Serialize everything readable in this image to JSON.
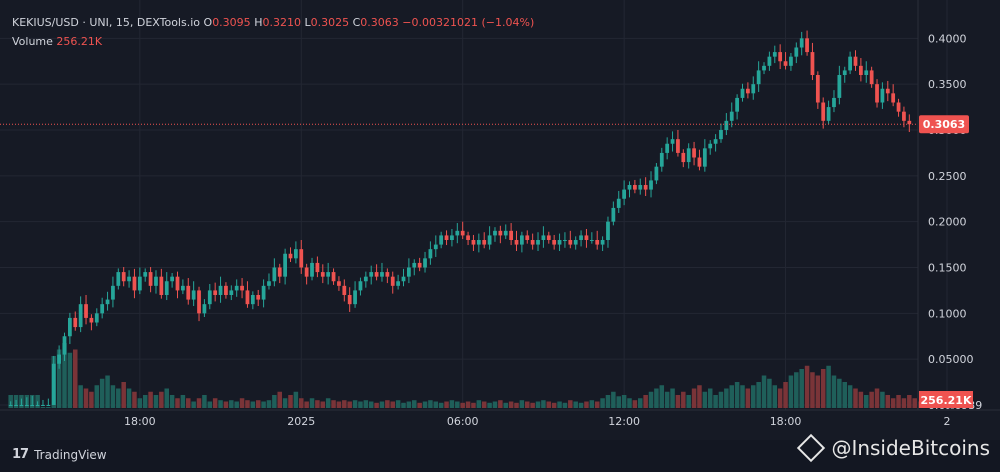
{
  "header": {
    "pair": "KEKIUS/USD · UNI, 15, DEXTools.io",
    "o_label": "O",
    "o_value": "0.3095",
    "h_label": "H",
    "h_value": "0.3210",
    "l_label": "L",
    "l_value": "0.3025",
    "c_label": "C",
    "c_value": "0.3063",
    "change": "−0.00321021 (−1.04%)",
    "volume_label": "Volume",
    "volume_value": "256.21K"
  },
  "footer": {
    "brand": "TradingView",
    "watermark": "@InsideBitcoins"
  },
  "colors": {
    "up": "#26a69a",
    "down": "#ef5350",
    "bg": "#161a25",
    "grid": "#232733",
    "text": "#d1d4dc"
  },
  "chart_data": {
    "type": "candlestick",
    "title": "KEKIUS/USD · UNI, 15, DEXTools.io",
    "ylim": [
      0,
      0.42
    ],
    "y_ticks": [
      "0.4000",
      "0.3500",
      "0.3000",
      "0.2500",
      "0.2000",
      "0.1500",
      "0.1000",
      "0.05000",
      "0.0₁₆6939"
    ],
    "y_tick_values": [
      0.4,
      0.35,
      0.3,
      0.25,
      0.2,
      0.15,
      0.1,
      0.05,
      0.0
    ],
    "x_ticks": [
      "18:00",
      "2025",
      "06:00",
      "12:00",
      "18:00",
      "2"
    ],
    "x_tick_index": [
      24,
      54,
      84,
      114,
      144,
      174
    ],
    "last_price": "0.3063",
    "last_price_value": 0.3063,
    "last_volume": "256.21K",
    "grid": true,
    "closes": [
      0.0,
      0.0,
      0.0,
      0.0,
      0.0,
      0.0,
      0.0,
      0.0,
      0.045,
      0.055,
      0.075,
      0.095,
      0.085,
      0.11,
      0.095,
      0.09,
      0.1,
      0.11,
      0.115,
      0.13,
      0.145,
      0.135,
      0.14,
      0.125,
      0.14,
      0.145,
      0.13,
      0.14,
      0.12,
      0.135,
      0.14,
      0.125,
      0.13,
      0.115,
      0.125,
      0.1,
      0.11,
      0.125,
      0.12,
      0.13,
      0.12,
      0.125,
      0.13,
      0.125,
      0.11,
      0.12,
      0.115,
      0.13,
      0.135,
      0.15,
      0.14,
      0.165,
      0.16,
      0.17,
      0.15,
      0.14,
      0.155,
      0.145,
      0.14,
      0.145,
      0.135,
      0.13,
      0.12,
      0.11,
      0.125,
      0.135,
      0.14,
      0.145,
      0.14,
      0.145,
      0.14,
      0.13,
      0.135,
      0.14,
      0.15,
      0.155,
      0.15,
      0.16,
      0.17,
      0.175,
      0.185,
      0.18,
      0.185,
      0.19,
      0.185,
      0.18,
      0.175,
      0.18,
      0.175,
      0.185,
      0.19,
      0.185,
      0.19,
      0.18,
      0.175,
      0.185,
      0.18,
      0.175,
      0.18,
      0.185,
      0.18,
      0.175,
      0.18,
      0.18,
      0.175,
      0.18,
      0.185,
      0.18,
      0.18,
      0.175,
      0.18,
      0.2,
      0.215,
      0.225,
      0.235,
      0.24,
      0.235,
      0.24,
      0.235,
      0.245,
      0.26,
      0.275,
      0.285,
      0.29,
      0.275,
      0.265,
      0.28,
      0.27,
      0.26,
      0.28,
      0.285,
      0.29,
      0.3,
      0.31,
      0.32,
      0.335,
      0.345,
      0.34,
      0.35,
      0.365,
      0.37,
      0.38,
      0.385,
      0.375,
      0.37,
      0.38,
      0.39,
      0.4,
      0.385,
      0.36,
      0.33,
      0.31,
      0.325,
      0.335,
      0.36,
      0.365,
      0.38,
      0.37,
      0.36,
      0.365,
      0.35,
      0.33,
      0.345,
      0.34,
      0.33,
      0.32,
      0.31,
      0.3063
    ],
    "volume_relative": [
      0.2,
      0.2,
      0.2,
      0.2,
      0.2,
      0.2,
      0.0,
      0.0,
      0.8,
      0.9,
      1.0,
      0.85,
      0.9,
      0.35,
      0.3,
      0.25,
      0.35,
      0.45,
      0.5,
      0.35,
      0.3,
      0.4,
      0.3,
      0.25,
      0.15,
      0.2,
      0.25,
      0.2,
      0.25,
      0.3,
      0.2,
      0.15,
      0.2,
      0.15,
      0.1,
      0.15,
      0.2,
      0.1,
      0.15,
      0.12,
      0.1,
      0.12,
      0.1,
      0.15,
      0.12,
      0.1,
      0.12,
      0.1,
      0.12,
      0.2,
      0.25,
      0.15,
      0.2,
      0.25,
      0.15,
      0.1,
      0.15,
      0.12,
      0.1,
      0.15,
      0.12,
      0.1,
      0.12,
      0.1,
      0.12,
      0.1,
      0.12,
      0.1,
      0.08,
      0.1,
      0.12,
      0.1,
      0.12,
      0.08,
      0.1,
      0.12,
      0.08,
      0.1,
      0.12,
      0.1,
      0.08,
      0.1,
      0.12,
      0.1,
      0.08,
      0.1,
      0.08,
      0.12,
      0.1,
      0.08,
      0.1,
      0.12,
      0.08,
      0.1,
      0.08,
      0.12,
      0.1,
      0.08,
      0.1,
      0.12,
      0.1,
      0.08,
      0.1,
      0.08,
      0.12,
      0.1,
      0.08,
      0.1,
      0.12,
      0.1,
      0.15,
      0.2,
      0.25,
      0.18,
      0.2,
      0.15,
      0.12,
      0.15,
      0.2,
      0.25,
      0.3,
      0.35,
      0.25,
      0.3,
      0.2,
      0.25,
      0.2,
      0.3,
      0.35,
      0.25,
      0.3,
      0.2,
      0.25,
      0.3,
      0.35,
      0.4,
      0.35,
      0.3,
      0.35,
      0.4,
      0.5,
      0.45,
      0.35,
      0.3,
      0.4,
      0.5,
      0.55,
      0.6,
      0.65,
      0.55,
      0.5,
      0.6,
      0.65,
      0.5,
      0.45,
      0.4,
      0.35,
      0.3,
      0.25,
      0.2,
      0.25,
      0.3,
      0.25,
      0.2,
      0.15,
      0.2,
      0.15,
      0.2,
      0.15,
      0.1,
      0.15,
      0.2,
      0.15,
      0.1
    ]
  }
}
